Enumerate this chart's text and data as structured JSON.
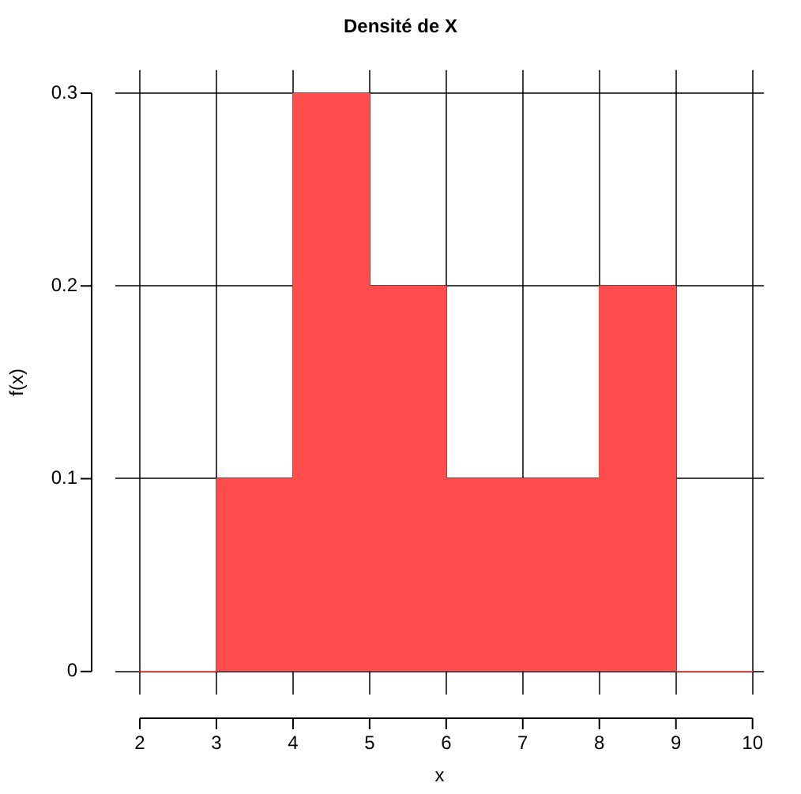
{
  "chart_data": {
    "type": "histogram",
    "title": "Densité de X",
    "xlabel": "x",
    "ylabel": "f(x)",
    "bins": [
      2,
      3,
      4,
      5,
      6,
      7,
      8,
      9,
      10
    ],
    "values": [
      0,
      0.1,
      0.3,
      0.2,
      0.1,
      0.1,
      0.2,
      0
    ],
    "color": "#ff4d4d",
    "xlim": [
      1.68,
      10.15
    ],
    "xticks": [
      2,
      3,
      4,
      5,
      6,
      7,
      8,
      9,
      10
    ],
    "ylim": [
      -0.012,
      0.312
    ],
    "yticks": [
      0,
      0.1,
      0.2,
      0.3
    ],
    "grid": true,
    "legend": false
  }
}
